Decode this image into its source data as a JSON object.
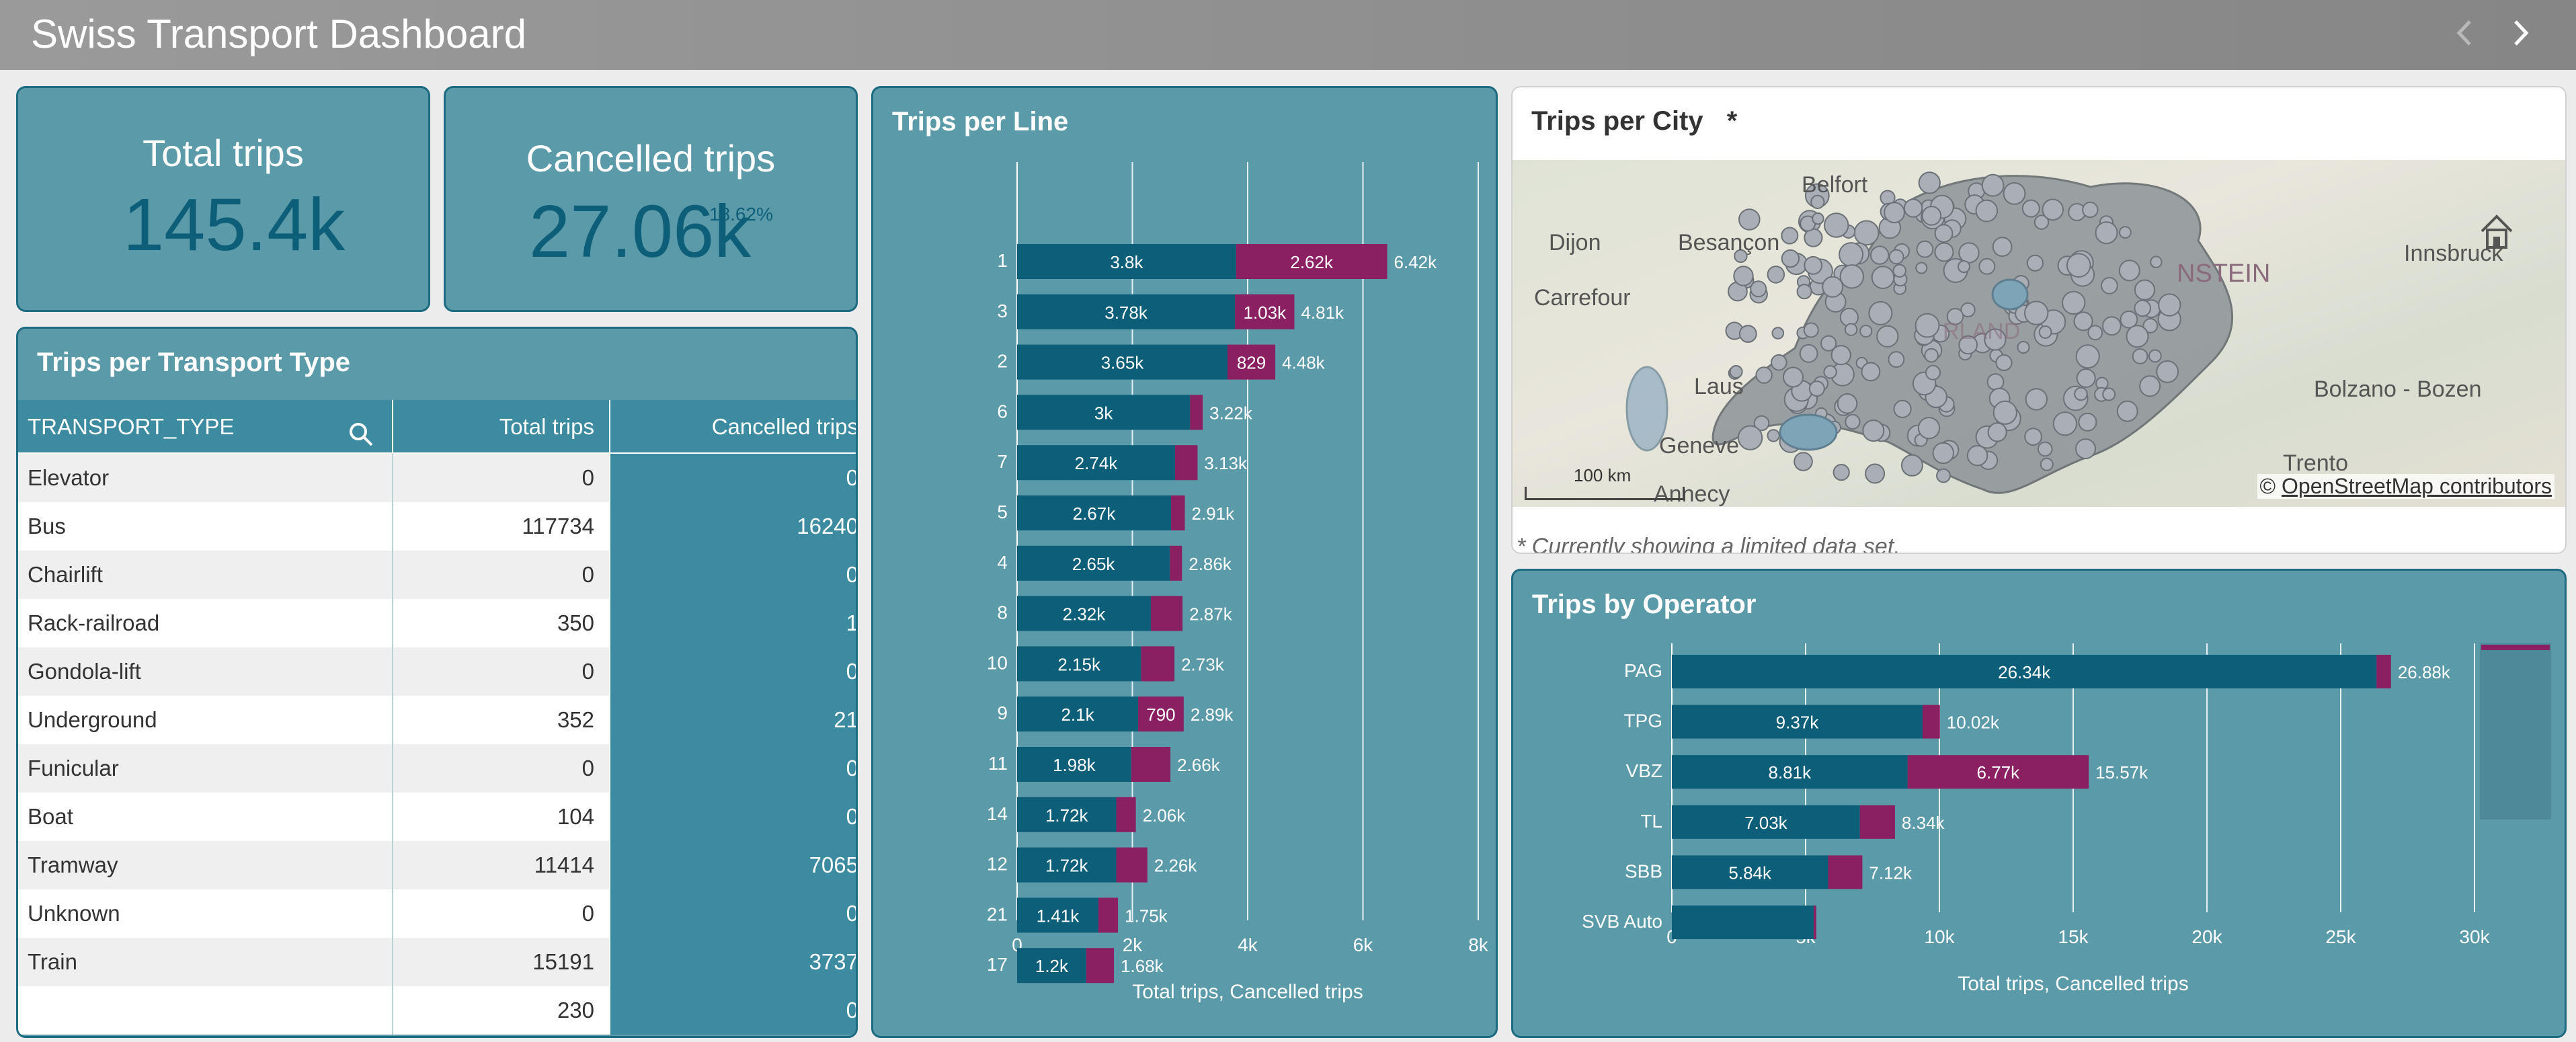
{
  "app": {
    "title": "Swiss Transport Dashboard",
    "prev_icon": "chevron-left-icon",
    "next_icon": "chevron-right-icon"
  },
  "kpis": {
    "total_trips": {
      "label": "Total trips",
      "value": "145.4k"
    },
    "cancelled_trips": {
      "label": "Cancelled trips",
      "value": "27.06k",
      "percent": "18.62%"
    }
  },
  "transport_table": {
    "title": "Trips per Transport Type",
    "columns": [
      "TRANSPORT_TYPE",
      "Total trips",
      "Cancelled trips"
    ],
    "search_icon": "search-icon",
    "rows": [
      [
        "Elevator",
        "0",
        "0"
      ],
      [
        "Bus",
        "117734",
        "16240"
      ],
      [
        "Chairlift",
        "0",
        "0"
      ],
      [
        "Rack-railroad",
        "350",
        "1"
      ],
      [
        "Gondola-lift",
        "0",
        "0"
      ],
      [
        "Underground",
        "352",
        "21"
      ],
      [
        "Funicular",
        "0",
        "0"
      ],
      [
        "Boat",
        "104",
        "0"
      ],
      [
        "Tramway",
        "11414",
        "7065"
      ],
      [
        "Unknown",
        "0",
        "0"
      ],
      [
        "Train",
        "15191",
        "3737"
      ],
      [
        "",
        "230",
        "0"
      ]
    ]
  },
  "line_chart": {
    "title": "Trips per Line",
    "xlabel": "Total trips, Cancelled trips",
    "ticks": [
      "0",
      "2k",
      "4k",
      "6k",
      "8k"
    ]
  },
  "map": {
    "title": "Trips per City",
    "marker": "*",
    "labels": [
      "Belfort",
      "Dijon",
      "Besançon",
      "Carrefour",
      "Innsbruck",
      "Laus",
      "Geneve",
      "Annecy",
      "Bolzano - Bozen",
      "Trento",
      "NSTEIN",
      "RLAND"
    ],
    "scale": "100 km",
    "attribution_prefix": "©",
    "attribution_link": "OpenStreetMap contributors",
    "footnote": "* Currently showing a limited data set.",
    "home_icon": "home-icon"
  },
  "operator_chart": {
    "title": "Trips by Operator",
    "xlabel": "Total trips, Cancelled trips",
    "ticks": [
      "0",
      "5k",
      "10k",
      "15k",
      "20k",
      "25k",
      "30k"
    ]
  },
  "colors": {
    "total": "#0d5f79",
    "cancelled": "#8a1f62",
    "panel": "#5b9aa9",
    "panel_border": "#1d6b80"
  },
  "chart_data": [
    {
      "type": "bar",
      "orientation": "horizontal",
      "stacked": true,
      "title": "Trips per Line",
      "xlabel": "Total trips, Cancelled trips",
      "xlim": [
        0,
        8000
      ],
      "categories": [
        "1",
        "3",
        "2",
        "6",
        "7",
        "5",
        "4",
        "8",
        "10",
        "9",
        "11",
        "14",
        "12",
        "21",
        "17"
      ],
      "series": [
        {
          "name": "Total trips",
          "values": [
            3800,
            3780,
            3650,
            3000,
            2740,
            2670,
            2650,
            2320,
            2150,
            2100,
            1980,
            1720,
            1720,
            1410,
            1200
          ],
          "labels": [
            "3.8k",
            "3.78k",
            "3.65k",
            "3k",
            "2.74k",
            "2.67k",
            "2.65k",
            "2.32k",
            "2.15k",
            "2.1k",
            "1.98k",
            "1.72k",
            "1.72k",
            "1.41k",
            "1.2k"
          ]
        },
        {
          "name": "Cancelled trips",
          "values": [
            2620,
            1030,
            829,
            220,
            390,
            240,
            210,
            550,
            580,
            790,
            680,
            340,
            540,
            340,
            480
          ],
          "labels": [
            "2.62k",
            "1.03k",
            "829",
            "",
            "",
            "",
            "",
            "",
            "",
            "790",
            "",
            "",
            "",
            "",
            ""
          ]
        }
      ],
      "totals": [
        "6.42k",
        "4.81k",
        "4.48k",
        "3.22k",
        "3.13k",
        "2.91k",
        "2.86k",
        "2.87k",
        "2.73k",
        "2.89k",
        "2.66k",
        "2.06k",
        "2.26k",
        "1.75k",
        "1.68k"
      ]
    },
    {
      "type": "bar",
      "orientation": "horizontal",
      "stacked": true,
      "title": "Trips by Operator",
      "xlabel": "Total trips, Cancelled trips",
      "xlim": [
        0,
        30000
      ],
      "categories": [
        "PAG",
        "TPG",
        "VBZ",
        "TL",
        "SBB",
        "SVB Auto"
      ],
      "series": [
        {
          "name": "Total trips",
          "values": [
            26340,
            9370,
            8810,
            7030,
            5840,
            5300
          ],
          "labels": [
            "26.34k",
            "9.37k",
            "8.81k",
            "7.03k",
            "5.84k",
            ""
          ]
        },
        {
          "name": "Cancelled trips",
          "values": [
            540,
            650,
            6770,
            1310,
            1280,
            100
          ],
          "labels": [
            "",
            "",
            "6.77k",
            "",
            "",
            ""
          ]
        }
      ],
      "totals": [
        "26.88k",
        "10.02k",
        "15.57k",
        "8.34k",
        "7.12k",
        ""
      ]
    }
  ]
}
